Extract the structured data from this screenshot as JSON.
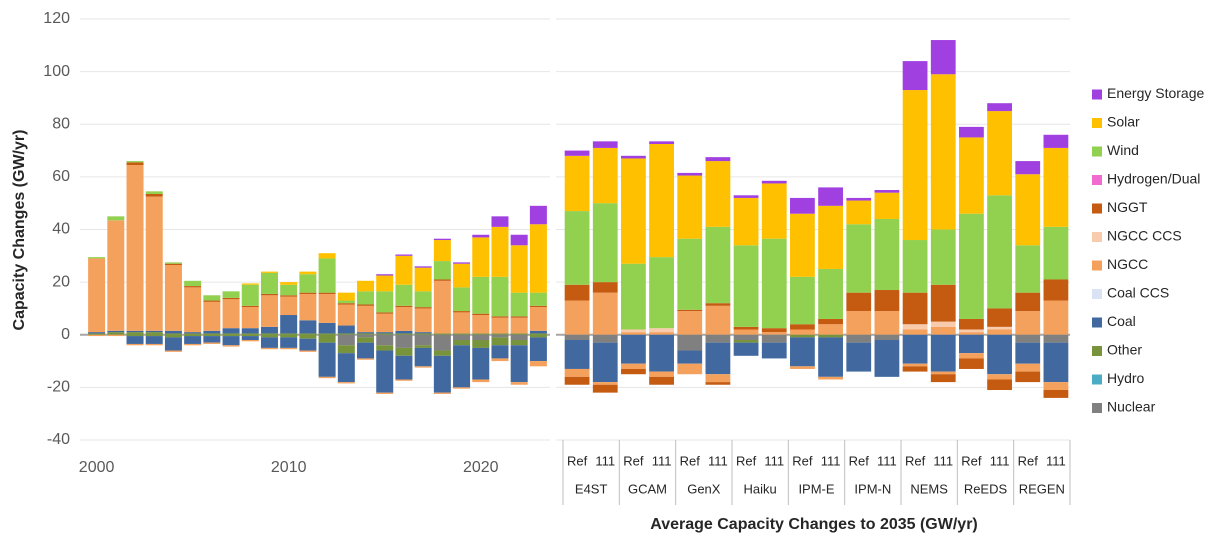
{
  "chart_data": [
    {
      "type": "bar",
      "stacked": true,
      "y_label": "Capacity Changes (GW/yr)",
      "xlim": [
        1999.5,
        2023.5
      ],
      "xticks": [
        2000,
        2010,
        2020
      ],
      "x": [
        2000,
        2001,
        2002,
        2003,
        2004,
        2005,
        2006,
        2007,
        2008,
        2009,
        2010,
        2011,
        2012,
        2013,
        2014,
        2015,
        2016,
        2017,
        2018,
        2019,
        2020,
        2021,
        2022,
        2023
      ],
      "ylim": [
        -40,
        120
      ],
      "yticks": [
        -40,
        -20,
        0,
        20,
        40,
        60,
        80,
        100,
        120
      ],
      "grid": true,
      "series": [
        {
          "name": "Nuclear",
          "color": "#808080",
          "values": [
            0,
            0,
            0,
            0,
            0,
            0,
            0,
            0,
            0,
            0,
            0,
            0,
            0,
            0,
            0,
            0,
            0,
            0,
            0,
            0,
            0,
            0,
            0,
            0
          ],
          "retirements": [
            0,
            0,
            0,
            0,
            0,
            0,
            0,
            0,
            0,
            0,
            0,
            0,
            0,
            -4,
            -1,
            -4,
            -5,
            -4,
            -6,
            -2,
            -2,
            -1,
            -2,
            0
          ]
        },
        {
          "name": "Hydro",
          "color": "#4bacc6",
          "values": [
            0,
            0,
            0,
            0,
            0,
            0,
            0,
            0,
            0,
            0,
            0,
            0,
            0,
            0,
            0,
            0,
            0,
            0,
            0,
            0,
            0,
            0,
            0,
            0
          ]
        },
        {
          "name": "Other",
          "color": "#77933c",
          "values": [
            0.5,
            1,
            1,
            1,
            0.5,
            0.5,
            0.5,
            0.5,
            0.5,
            0.5,
            0.5,
            0.5,
            0.5,
            0.5,
            0.5,
            0.5,
            0.5,
            0.5,
            0.5,
            0.5,
            0.5,
            0.5,
            0.5,
            0.5
          ],
          "retirements": [
            0,
            0,
            -0.5,
            -0.5,
            -1,
            -0.5,
            -0.5,
            -0.5,
            -0.5,
            -1,
            -1,
            -1.5,
            -3,
            -3,
            -2,
            -2,
            -3,
            -1,
            -2,
            -2,
            -3,
            -3,
            -2,
            -1
          ]
        },
        {
          "name": "Coal",
          "color": "#41699f",
          "values": [
            0.5,
            0.5,
            0.5,
            0.5,
            1,
            0.5,
            1,
            2,
            2,
            2.5,
            7,
            5,
            4,
            3,
            0.5,
            0.5,
            1,
            0.5,
            0,
            0,
            0,
            0,
            0,
            1
          ],
          "retirements": [
            0,
            0,
            -3,
            -3,
            -5,
            -3,
            -2.5,
            -3.5,
            -1.5,
            -4,
            -4,
            -4.5,
            -13,
            -11,
            -6,
            -16,
            -9,
            -7,
            -14,
            -16,
            -12,
            -5,
            -14,
            -9
          ]
        },
        {
          "name": "Coal CCS",
          "color": "#dae3f3",
          "values": [
            0,
            0,
            0,
            0,
            0,
            0,
            0,
            0,
            0,
            0,
            0,
            0,
            0,
            0,
            0,
            0,
            0,
            0,
            0,
            0,
            0,
            0,
            0,
            0
          ]
        },
        {
          "name": "NGCC",
          "color": "#f4a15d",
          "values": [
            28,
            42,
            63,
            51,
            25,
            17,
            11,
            11,
            8,
            12,
            7,
            10,
            11,
            8,
            10,
            7,
            9,
            9,
            20,
            8,
            7,
            6,
            6,
            9
          ],
          "retirements": [
            -0.5,
            -0.5,
            -0.5,
            -0.5,
            -0.5,
            -0.5,
            -0.5,
            -0.5,
            -0.5,
            -0.5,
            -0.5,
            -0.5,
            -0.5,
            -0.5,
            -0.5,
            -0.5,
            -0.5,
            -0.5,
            -0.5,
            -0.5,
            -1,
            -1,
            -1,
            -2
          ]
        },
        {
          "name": "NGCC CCS",
          "color": "#f8cbad",
          "values": [
            0,
            0,
            0,
            0,
            0,
            0,
            0,
            0,
            0,
            0,
            0,
            0,
            0,
            0,
            0,
            0,
            0,
            0,
            0,
            0,
            0,
            0,
            0,
            0
          ]
        },
        {
          "name": "NGGT",
          "color": "#c55a11",
          "values": [
            0,
            0,
            1,
            1,
            0.5,
            0.5,
            0.5,
            0.5,
            0.5,
            0.5,
            0.5,
            0.5,
            0.5,
            0.5,
            0.5,
            0.5,
            0.5,
            0.5,
            0.5,
            0.5,
            0.5,
            0.5,
            0.5,
            0.5
          ]
        },
        {
          "name": "Hydrogen/Dual",
          "color": "#f06ad0",
          "values": [
            0,
            0,
            0,
            0,
            0,
            0,
            0,
            0,
            0,
            0,
            0,
            0,
            0,
            0,
            0,
            0,
            0,
            0,
            0,
            0,
            0,
            0,
            0,
            0
          ]
        },
        {
          "name": "Wind",
          "color": "#92d050",
          "values": [
            0.5,
            1.5,
            0.5,
            1,
            0.5,
            2,
            2,
            2.5,
            8,
            8,
            4,
            7,
            13,
            1,
            5,
            8,
            8,
            6,
            7,
            9,
            14,
            15,
            9,
            5
          ]
        },
        {
          "name": "Solar",
          "color": "#ffc000",
          "values": [
            0,
            0,
            0,
            0,
            0,
            0,
            0,
            0,
            0.5,
            0.5,
            1,
            1,
            2,
            3,
            4,
            6,
            11,
            9,
            8,
            9,
            15,
            19,
            18,
            26
          ]
        },
        {
          "name": "Energy Storage",
          "color": "#a040e0",
          "values": [
            0,
            0,
            0,
            0,
            0,
            0,
            0,
            0,
            0,
            0,
            0,
            0,
            0,
            0,
            0,
            0.5,
            0.5,
            0.5,
            0.5,
            0.5,
            1,
            4,
            4,
            7
          ]
        }
      ]
    },
    {
      "type": "bar",
      "stacked": true,
      "x_label": "Average Capacity Changes to 2035 (GW/yr)",
      "groups": [
        "E4ST",
        "GCAM",
        "GenX",
        "Haiku",
        "IPM-E",
        "IPM-N",
        "NEMS",
        "ReEDS",
        "REGEN"
      ],
      "categories": [
        "Ref",
        "111",
        "Ref",
        "111",
        "Ref",
        "111",
        "Ref",
        "111",
        "Ref",
        "111",
        "Ref",
        "111",
        "Ref",
        "111",
        "Ref",
        "111",
        "Ref",
        "111"
      ],
      "ylim": [
        -40,
        120
      ],
      "yticks": [
        -40,
        -20,
        0,
        20,
        40,
        60,
        80,
        100,
        120
      ],
      "grid": true,
      "series": [
        {
          "values": [
            0,
            0,
            0,
            0,
            0,
            0,
            0,
            0,
            0,
            0,
            0,
            0,
            0,
            0,
            0,
            0,
            0,
            0
          ],
          "retirements": [
            -2,
            -3,
            0,
            0,
            -6,
            -3,
            -2,
            -3,
            0,
            0,
            -3,
            -2,
            0,
            0,
            0,
            0,
            -3,
            -3
          ]
        },
        {
          "values": [
            0,
            0,
            0,
            0,
            0,
            0,
            0,
            0,
            0,
            0,
            0,
            0,
            0,
            0,
            0,
            0,
            0,
            0
          ]
        },
        {
          "values": [
            0,
            0,
            0,
            0,
            0,
            0,
            0,
            0,
            0,
            0,
            0,
            0,
            0,
            0,
            0,
            0,
            0,
            0
          ],
          "retirements": [
            0,
            0,
            0,
            0,
            0,
            0,
            -1,
            0,
            -1,
            -1,
            0,
            0,
            0,
            0,
            0,
            0,
            0,
            0
          ]
        },
        {
          "values": [
            0,
            0,
            0,
            0,
            0,
            0,
            0,
            0,
            0,
            0,
            0,
            0,
            0,
            0,
            0,
            0,
            0,
            0
          ],
          "retirements": [
            -11,
            -15,
            -11,
            -14,
            -5,
            -12,
            -5,
            -6,
            -11,
            -15,
            -11,
            -14,
            -11,
            -14,
            -7,
            -15,
            -8,
            -15
          ]
        },
        {
          "values": [
            0,
            0,
            0,
            0,
            0,
            0,
            0,
            0,
            0,
            0,
            0,
            0,
            0,
            0,
            0,
            0,
            0,
            0
          ]
        },
        {
          "values": [
            13,
            16,
            1,
            1,
            9,
            11,
            2,
            1,
            2,
            4,
            9,
            9,
            2,
            3,
            1,
            2,
            9,
            13
          ],
          "retirements": [
            -3,
            -1,
            -2,
            -2,
            -4,
            -3,
            0,
            0,
            -1,
            -1,
            0,
            0,
            -1,
            -1,
            -2,
            -2,
            -3,
            -3
          ]
        },
        {
          "values": [
            0,
            0,
            1,
            1.5,
            0,
            0,
            0,
            0,
            0,
            0,
            0,
            0,
            2,
            2,
            1,
            1,
            0,
            0
          ]
        },
        {
          "values": [
            6,
            4,
            0,
            0,
            0.5,
            1,
            1,
            1.5,
            2,
            2,
            7,
            8,
            12,
            14,
            4,
            7,
            7,
            8
          ],
          "retirements": [
            -3,
            -3,
            -2,
            -3,
            0,
            -1,
            0,
            0,
            0,
            0,
            0,
            0,
            -2,
            -3,
            -4,
            -4,
            -4,
            -3
          ]
        },
        {
          "values": [
            0,
            0,
            0,
            0,
            0,
            0,
            0,
            0,
            0,
            0,
            0,
            0,
            0,
            0,
            0,
            0,
            0,
            0
          ]
        },
        {
          "values": [
            28,
            30,
            25,
            27,
            27,
            29,
            31,
            34,
            18,
            19,
            26,
            27,
            20,
            21,
            40,
            43,
            18,
            20
          ]
        },
        {
          "values": [
            21,
            21,
            40,
            43,
            24,
            25,
            18,
            21,
            24,
            24,
            9,
            10,
            57,
            59,
            29,
            32,
            27,
            30
          ]
        },
        {
          "values": [
            2,
            2.5,
            1,
            1,
            1,
            1.5,
            1,
            1,
            6,
            7,
            1,
            1,
            11,
            13,
            4,
            3,
            5,
            5
          ]
        }
      ]
    }
  ]
}
